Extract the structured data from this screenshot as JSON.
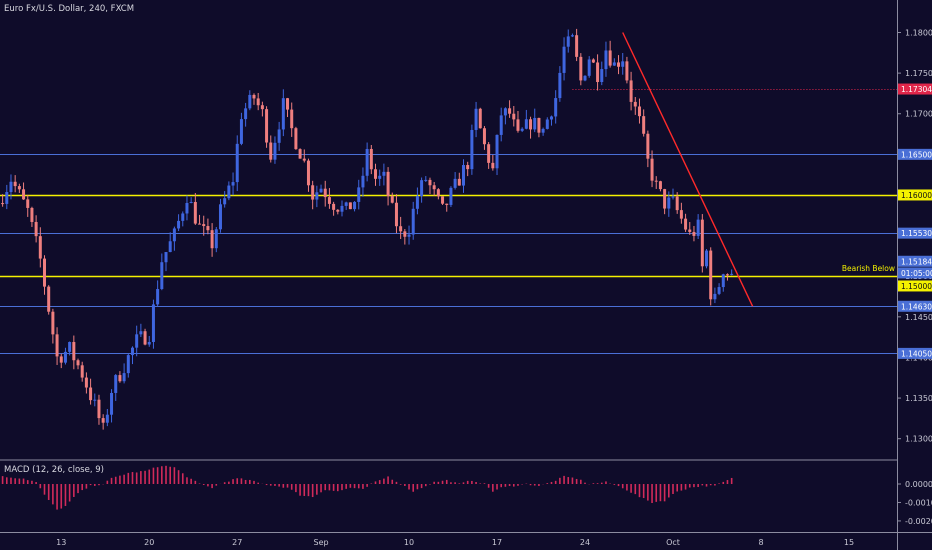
{
  "header": {
    "symbol_line": "Euro Fx/U.S. Dollar, 240, FXCM"
  },
  "colors": {
    "background": "#0f0c2a",
    "up": "#3f66e0",
    "down": "#ef7f7f",
    "yellow_line": "#f5f200",
    "blue_line": "#4a6fd6",
    "trend_line": "#ff2a2a",
    "macd_hist": "#d12a5a"
  },
  "chart_data": [
    {
      "type": "candlestick",
      "title": "Euro Fx/U.S. Dollar, 240, FXCM",
      "ylim": [
        1.1275,
        1.184
      ],
      "y_ticks": [
        "1.18000",
        "1.17500",
        "1.17000",
        "1.16500",
        "1.16000",
        "1.15500",
        "1.15000",
        "1.14500",
        "1.14000",
        "1.13500",
        "1.13000"
      ],
      "y_tick_values": [
        1.18,
        1.175,
        1.17,
        1.165,
        1.16,
        1.155,
        1.15,
        1.145,
        1.14,
        1.135,
        1.13
      ],
      "x_ticks": [
        "13",
        "20",
        "27",
        "Sep",
        "10",
        "17",
        "24",
        "Oct",
        "8",
        "15"
      ],
      "x_tick_index": [
        14,
        35,
        56,
        76,
        97,
        118,
        139,
        160,
        181,
        202
      ],
      "candle_count": 175,
      "price_path": [
        [
          0,
          1.159
        ],
        [
          3,
          1.162
        ],
        [
          7,
          1.158
        ],
        [
          10,
          1.152
        ],
        [
          12,
          1.146
        ],
        [
          14,
          1.14
        ],
        [
          17,
          1.141
        ],
        [
          20,
          1.138
        ],
        [
          23,
          1.134
        ],
        [
          25,
          1.131
        ],
        [
          27,
          1.136
        ],
        [
          30,
          1.139
        ],
        [
          33,
          1.142
        ],
        [
          36,
          1.143
        ],
        [
          39,
          1.152
        ],
        [
          42,
          1.155
        ],
        [
          45,
          1.16
        ],
        [
          48,
          1.156
        ],
        [
          51,
          1.154
        ],
        [
          53,
          1.158
        ],
        [
          56,
          1.162
        ],
        [
          58,
          1.17
        ],
        [
          61,
          1.172
        ],
        [
          63,
          1.17
        ],
        [
          65,
          1.165
        ],
        [
          68,
          1.171
        ],
        [
          70,
          1.168
        ],
        [
          73,
          1.164
        ],
        [
          75,
          1.16
        ],
        [
          77,
          1.161
        ],
        [
          80,
          1.159
        ],
        [
          83,
          1.158
        ],
        [
          86,
          1.16
        ],
        [
          88,
          1.165
        ],
        [
          90,
          1.162
        ],
        [
          92,
          1.162
        ],
        [
          94,
          1.158
        ],
        [
          96,
          1.155
        ],
        [
          98,
          1.156
        ],
        [
          100,
          1.16
        ],
        [
          102,
          1.162
        ],
        [
          104,
          1.16
        ],
        [
          106,
          1.158
        ],
        [
          108,
          1.16
        ],
        [
          110,
          1.162
        ],
        [
          112,
          1.164
        ],
        [
          114,
          1.17
        ],
        [
          116,
          1.166
        ],
        [
          118,
          1.163
        ],
        [
          120,
          1.17
        ],
        [
          122,
          1.17
        ],
        [
          124,
          1.167
        ],
        [
          127,
          1.169
        ],
        [
          130,
          1.168
        ],
        [
          133,
          1.172
        ],
        [
          135,
          1.178
        ],
        [
          137,
          1.179
        ],
        [
          139,
          1.174
        ],
        [
          141,
          1.177
        ],
        [
          143,
          1.175
        ],
        [
          145,
          1.178
        ],
        [
          147,
          1.176
        ],
        [
          149,
          1.177
        ],
        [
          151,
          1.172
        ],
        [
          153,
          1.169
        ],
        [
          155,
          1.164
        ],
        [
          157,
          1.161
        ],
        [
          159,
          1.159
        ],
        [
          161,
          1.159
        ],
        [
          163,
          1.157
        ],
        [
          165,
          1.155
        ],
        [
          167,
          1.156
        ],
        [
          168,
          1.151
        ],
        [
          169,
          1.153
        ],
        [
          170,
          1.148
        ],
        [
          171,
          1.147
        ],
        [
          172,
          1.149
        ],
        [
          173,
          1.151
        ],
        [
          174,
          1.1505
        ]
      ],
      "horizontal_lines": [
        {
          "price": 1.16,
          "style": "yellow"
        },
        {
          "price": 1.15,
          "style": "yellow"
        },
        {
          "price": 1.165,
          "style": "blue"
        },
        {
          "price": 1.1553,
          "style": "blue"
        },
        {
          "price": 1.1463,
          "style": "blue"
        },
        {
          "price": 1.1405,
          "style": "blue"
        },
        {
          "price": 1.173,
          "style": "red-dotted",
          "from_index": 136
        }
      ],
      "trend_line": {
        "from": [
          148,
          1.18
        ],
        "to": [
          179,
          1.1463
        ]
      },
      "price_tags": [
        {
          "label": "1.17304",
          "price": 1.17304,
          "color": "#e0264a"
        },
        {
          "label": "1.16500",
          "price": 1.165,
          "color": "#4a6fd6"
        },
        {
          "label": "1.16000",
          "price": 1.16,
          "color": "#f5f200"
        },
        {
          "label": "1.15530",
          "price": 1.1553,
          "color": "#4a6fd6"
        },
        {
          "label": "1.15184",
          "price": 1.15184,
          "color": "#4a6fd6"
        },
        {
          "label": "01:05:00",
          "price": 1.1504,
          "color": "#4a6fd6"
        },
        {
          "label": "1.15000",
          "price": 1.1488,
          "color": "#f5f200"
        },
        {
          "label": "1.14630",
          "price": 1.1463,
          "color": "#4a6fd6"
        },
        {
          "label": "1.14050",
          "price": 1.1405,
          "color": "#4a6fd6"
        }
      ],
      "annotation": {
        "text": "Bearish Below",
        "price": 1.1505
      }
    },
    {
      "type": "bar",
      "title": "MACD (12, 26, close, 9)",
      "ylim": [
        -0.0026,
        0.0013
      ],
      "y_ticks": [
        "0.0000",
        "-0.0010",
        "-0.0020"
      ],
      "y_tick_values": [
        0.0,
        -0.001,
        -0.002
      ],
      "hist_path": [
        [
          0,
          0.0004
        ],
        [
          5,
          0.0003
        ],
        [
          8,
          0.0001
        ],
        [
          10,
          -0.0006
        ],
        [
          13,
          -0.0014
        ],
        [
          15,
          -0.0012
        ],
        [
          18,
          -0.0005
        ],
        [
          21,
          -0.0001
        ],
        [
          24,
          0.0
        ],
        [
          26,
          0.0003
        ],
        [
          30,
          0.0006
        ],
        [
          34,
          0.0007
        ],
        [
          38,
          0.001
        ],
        [
          41,
          0.0009
        ],
        [
          44,
          0.0004
        ],
        [
          47,
          0.0
        ],
        [
          50,
          -0.0002
        ],
        [
          53,
          0.0001
        ],
        [
          56,
          0.0003
        ],
        [
          59,
          0.0002
        ],
        [
          62,
          0.0
        ],
        [
          65,
          -0.0001
        ],
        [
          68,
          -0.0002
        ],
        [
          71,
          -0.0006
        ],
        [
          74,
          -0.0007
        ],
        [
          77,
          -0.0003
        ],
        [
          80,
          -0.0004
        ],
        [
          83,
          -0.0002
        ],
        [
          86,
          -0.0003
        ],
        [
          88,
          0.0
        ],
        [
          90,
          0.0002
        ],
        [
          92,
          0.0004
        ],
        [
          95,
          0.0
        ],
        [
          98,
          -0.0004
        ],
        [
          100,
          -0.0002
        ],
        [
          103,
          0.0001
        ],
        [
          106,
          0.0002
        ],
        [
          109,
          0.0
        ],
        [
          112,
          0.0002
        ],
        [
          115,
          0.0
        ],
        [
          117,
          -0.0004
        ],
        [
          119,
          -0.0002
        ],
        [
          122,
          -0.0001
        ],
        [
          125,
          0.0
        ],
        [
          128,
          -0.0001
        ],
        [
          131,
          0.0001
        ],
        [
          134,
          0.0004
        ],
        [
          137,
          0.0003
        ],
        [
          140,
          0.0
        ],
        [
          144,
          0.0001
        ],
        [
          148,
          -0.0002
        ],
        [
          152,
          -0.0007
        ],
        [
          155,
          -0.001
        ],
        [
          158,
          -0.0009
        ],
        [
          161,
          -0.0004
        ],
        [
          164,
          -0.0002
        ],
        [
          167,
          -0.0001
        ],
        [
          170,
          -0.0001
        ],
        [
          172,
          0.0001
        ],
        [
          174,
          0.0003
        ]
      ]
    }
  ]
}
